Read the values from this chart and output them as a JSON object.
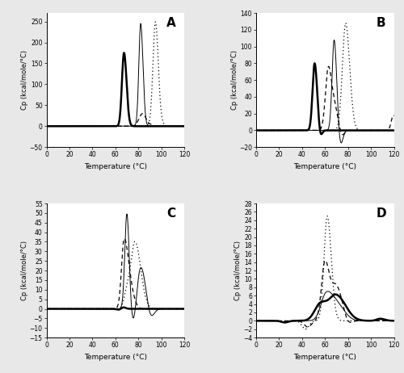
{
  "fig_bg": "#e8e8e8",
  "panel_bg": "#ffffff",
  "panels": [
    {
      "label": "A",
      "xlim": [
        0,
        120
      ],
      "ylim": [
        -50,
        270
      ],
      "yticks": [
        -50,
        0,
        50,
        100,
        150,
        200,
        250
      ],
      "xticks": [
        0,
        20,
        40,
        60,
        80,
        100,
        120
      ],
      "ylabel": "Cp (kcal/mole/°C)",
      "xlabel": "Temperature (°C)"
    },
    {
      "label": "B",
      "xlim": [
        0,
        120
      ],
      "ylim": [
        -20,
        140
      ],
      "yticks": [
        -20,
        0,
        20,
        40,
        60,
        80,
        100,
        120,
        140
      ],
      "xticks": [
        0,
        20,
        40,
        60,
        80,
        100,
        120
      ],
      "ylabel": "Cp (kcal/mole/°C)",
      "xlabel": "Temperature (°C)"
    },
    {
      "label": "C",
      "xlim": [
        0,
        120
      ],
      "ylim": [
        -15,
        55
      ],
      "yticks": [
        -15,
        -10,
        -5,
        0,
        5,
        10,
        15,
        20,
        25,
        30,
        35,
        40,
        45,
        50,
        55
      ],
      "xticks": [
        0,
        20,
        40,
        60,
        80,
        100,
        120
      ],
      "ylabel": "Cp (kcal/mole/°C)",
      "xlabel": "Temperature (°C)"
    },
    {
      "label": "D",
      "xlim": [
        0,
        120
      ],
      "ylim": [
        -4,
        28
      ],
      "yticks": [
        -4,
        -2,
        0,
        2,
        4,
        6,
        8,
        10,
        12,
        14,
        16,
        18,
        20,
        22,
        24,
        26,
        28
      ],
      "xticks": [
        0,
        20,
        40,
        60,
        80,
        100,
        120
      ],
      "ylabel": "Cp (kcal/mole/°C)",
      "xlabel": "Temperature (°C)"
    }
  ],
  "styles": {
    "thick_solid": {
      "ls": "-",
      "lw": 1.8,
      "color": "#000000"
    },
    "thin_solid": {
      "ls": "-",
      "lw": 0.7,
      "color": "#000000"
    },
    "dashed": {
      "ls": "--",
      "lw": 0.9,
      "color": "#000000"
    },
    "dotted": {
      "ls": ":",
      "lw": 0.9,
      "color": "#000000"
    }
  }
}
